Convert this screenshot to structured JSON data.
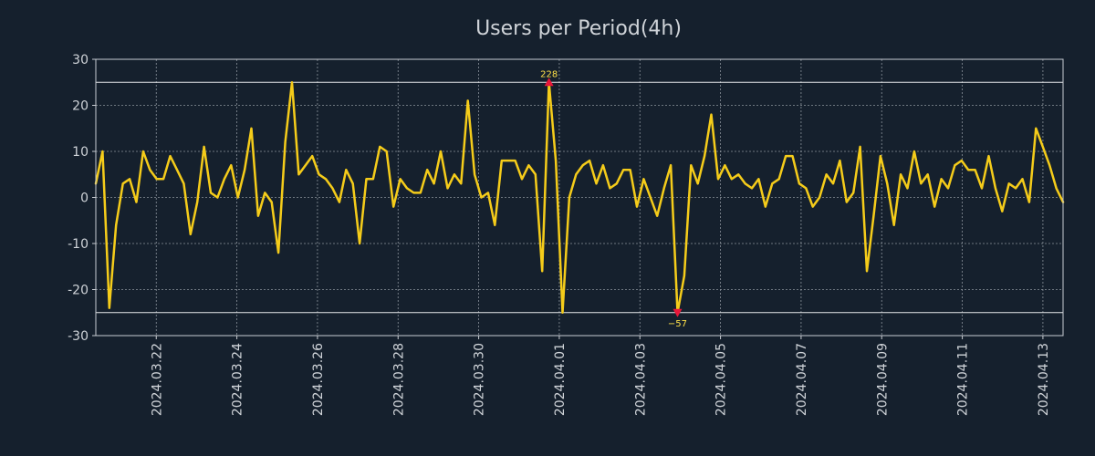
{
  "chart_data": {
    "type": "line",
    "title": "Users per Period(4h)",
    "xlabel": "",
    "ylabel": "",
    "ylim": [
      -30,
      30
    ],
    "y_ticks": [
      30,
      20,
      10,
      0,
      -10,
      -20,
      -30
    ],
    "x_domain": [
      "2024.03.20 12:00",
      "2024.04.13 12:00"
    ],
    "x_ticks": [
      "2024.03.22",
      "2024.03.24",
      "2024.03.26",
      "2024.03.28",
      "2024.03.30",
      "2024.04.01",
      "2024.04.03",
      "2024.04.05",
      "2024.04.07",
      "2024.04.09",
      "2024.04.11",
      "2024.04.13"
    ],
    "grid": true,
    "threshold_lines": [
      25,
      -25
    ],
    "series": [
      {
        "name": "Users",
        "color": "#f5cc1a",
        "values": [
          3,
          10,
          -24,
          -6,
          3,
          4,
          -1,
          10,
          6,
          4,
          4,
          9,
          6,
          3,
          -8,
          -1,
          11,
          1,
          0,
          4,
          7,
          0,
          6,
          15,
          -4,
          1,
          -1,
          -12,
          12,
          25,
          5,
          7,
          9,
          5,
          4,
          2,
          -1,
          6,
          3,
          -10,
          4,
          4,
          11,
          10,
          -2,
          4,
          2,
          1,
          1,
          6,
          3,
          10,
          2,
          5,
          3,
          21,
          5,
          0,
          1,
          -6,
          8,
          8,
          8,
          4,
          7,
          5,
          -16,
          25,
          8,
          -25,
          0,
          5,
          7,
          8,
          3,
          7,
          2,
          3,
          6,
          6,
          -2,
          4,
          0,
          -4,
          2,
          7,
          -25,
          -17,
          7,
          3,
          9,
          18,
          4,
          7,
          4,
          5,
          3,
          2,
          4,
          -2,
          3,
          4,
          9,
          9,
          3,
          2,
          -2,
          0,
          5,
          3,
          8,
          -1,
          1,
          11,
          -16,
          -4,
          9,
          3,
          -6,
          5,
          2,
          10,
          3,
          5,
          -2,
          4,
          2,
          7,
          8,
          6,
          6,
          2,
          9,
          2,
          -3,
          3,
          2,
          4,
          -1,
          15,
          11,
          7,
          2,
          -1
        ]
      }
    ],
    "annotations": [
      {
        "label": "228",
        "index": 67,
        "value": 25,
        "direction": "up",
        "color": "#e8173a"
      },
      {
        "label": "−57",
        "index": 86,
        "value": -25,
        "direction": "down",
        "color": "#e8173a"
      }
    ]
  }
}
